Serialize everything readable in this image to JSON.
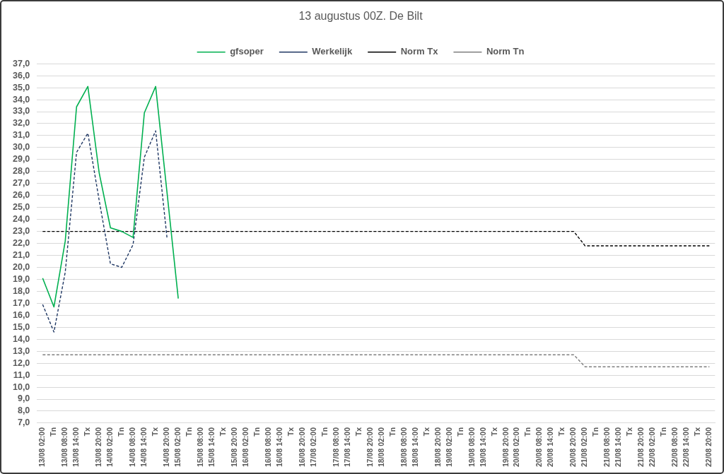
{
  "chart_data": {
    "type": "line",
    "title": "13 augustus 00Z. De Bilt",
    "categories": [
      "13/08 02:00",
      "Tn",
      "13/08 08:00",
      "13/08 14:00",
      "Tx",
      "13/08 20:00",
      "14/08 02:00",
      "Tn",
      "14/08 08:00",
      "14/08 14:00",
      "Tx",
      "14/08 20:00",
      "15/08 02:00",
      "Tn",
      "15/08 08:00",
      "15/08 14:00",
      "Tx",
      "15/08 20:00",
      "16/08 02:00",
      "Tn",
      "16/08 08:00",
      "16/08 14:00",
      "Tx",
      "16/08 20:00",
      "17/08 02:00",
      "Tn",
      "17/08 08:00",
      "17/08 14:00",
      "Tx",
      "17/08 20:00",
      "18/08 02:00",
      "Tn",
      "18/08 08:00",
      "18/08 14:00",
      "Tx",
      "18/08 20:00",
      "19/08 02:00",
      "Tn",
      "19/08 08:00",
      "19/08 14:00",
      "Tx",
      "19/08 20:00",
      "20/08 02:00",
      "Tn",
      "20/08 08:00",
      "20/08 14:00",
      "Tx",
      "20/08 20:00",
      "21/08 02:00",
      "Tn",
      "21/08 08:00",
      "21/08 14:00",
      "Tx",
      "21/08 20:00",
      "22/08 02:00",
      "Tn",
      "22/08 08:00",
      "22/08 14:00",
      "Tx",
      "22/08 20:00"
    ],
    "series": [
      {
        "name": "gfsoper",
        "color": "#00b050",
        "line_style": "solid",
        "values": [
          19.1,
          16.7,
          22.2,
          33.4,
          35.1,
          27.9,
          23.3,
          23.0,
          22.5,
          32.9,
          35.1,
          26.3,
          17.4,
          null,
          null,
          null,
          null,
          null,
          null,
          null,
          null,
          null,
          null,
          null,
          null,
          null,
          null,
          null,
          null,
          null,
          null,
          null,
          null,
          null,
          null,
          null,
          null,
          null,
          null,
          null,
          null,
          null,
          null,
          null,
          null,
          null,
          null,
          null,
          null,
          null,
          null,
          null,
          null,
          null,
          null,
          null,
          null,
          null,
          null,
          null
        ]
      },
      {
        "name": "Werkelijk",
        "color": "#203864",
        "line_style": "dashed",
        "values": [
          16.9,
          14.6,
          19.6,
          29.6,
          31.2,
          25.6,
          20.3,
          20.0,
          21.9,
          29.2,
          31.4,
          22.5,
          null,
          null,
          null,
          null,
          null,
          null,
          null,
          null,
          null,
          null,
          null,
          null,
          null,
          null,
          null,
          null,
          null,
          null,
          null,
          null,
          null,
          null,
          null,
          null,
          null,
          null,
          null,
          null,
          null,
          null,
          null,
          null,
          null,
          null,
          null,
          null,
          null,
          null,
          null,
          null,
          null,
          null,
          null,
          null,
          null,
          null,
          null,
          null
        ]
      },
      {
        "name": "Norm Tx",
        "color": "#000000",
        "line_style": "dashed",
        "values": [
          23.0,
          23.0,
          23.0,
          23.0,
          23.0,
          23.0,
          23.0,
          23.0,
          23.0,
          23.0,
          23.0,
          23.0,
          23.0,
          23.0,
          23.0,
          23.0,
          23.0,
          23.0,
          23.0,
          23.0,
          23.0,
          23.0,
          23.0,
          23.0,
          23.0,
          23.0,
          23.0,
          23.0,
          23.0,
          23.0,
          23.0,
          23.0,
          23.0,
          23.0,
          23.0,
          23.0,
          23.0,
          23.0,
          23.0,
          23.0,
          23.0,
          23.0,
          23.0,
          23.0,
          23.0,
          23.0,
          23.0,
          23.0,
          21.8,
          21.8,
          21.8,
          21.8,
          21.8,
          21.8,
          21.8,
          21.8,
          21.8,
          21.8,
          21.8,
          21.8
        ]
      },
      {
        "name": "Norm Tn",
        "color": "#7f7f7f",
        "line_style": "dashed",
        "values": [
          12.7,
          12.7,
          12.7,
          12.7,
          12.7,
          12.7,
          12.7,
          12.7,
          12.7,
          12.7,
          12.7,
          12.7,
          12.7,
          12.7,
          12.7,
          12.7,
          12.7,
          12.7,
          12.7,
          12.7,
          12.7,
          12.7,
          12.7,
          12.7,
          12.7,
          12.7,
          12.7,
          12.7,
          12.7,
          12.7,
          12.7,
          12.7,
          12.7,
          12.7,
          12.7,
          12.7,
          12.7,
          12.7,
          12.7,
          12.7,
          12.7,
          12.7,
          12.7,
          12.7,
          12.7,
          12.7,
          12.7,
          12.7,
          11.7,
          11.7,
          11.7,
          11.7,
          11.7,
          11.7,
          11.7,
          11.7,
          11.7,
          11.7,
          11.7,
          11.7
        ]
      }
    ],
    "ylim": [
      7,
      37
    ],
    "yticks": [
      {
        "value": 7,
        "label": "7,0"
      },
      {
        "value": 8,
        "label": "8,0"
      },
      {
        "value": 9,
        "label": "9,0"
      },
      {
        "value": 10,
        "label": "10,0"
      },
      {
        "value": 11,
        "label": "11,0"
      },
      {
        "value": 12,
        "label": "12,0"
      },
      {
        "value": 13,
        "label": "13,0"
      },
      {
        "value": 14,
        "label": "14,0"
      },
      {
        "value": 15,
        "label": "15,0"
      },
      {
        "value": 16,
        "label": "16,0"
      },
      {
        "value": 17,
        "label": "17,0"
      },
      {
        "value": 18,
        "label": "18,0"
      },
      {
        "value": 19,
        "label": "19,0"
      },
      {
        "value": 20,
        "label": "20,0"
      },
      {
        "value": 21,
        "label": "21,0"
      },
      {
        "value": 22,
        "label": "22,0"
      },
      {
        "value": 23,
        "label": "23,0"
      },
      {
        "value": 24,
        "label": "24,0"
      },
      {
        "value": 25,
        "label": "25,0"
      },
      {
        "value": 26,
        "label": "26,0"
      },
      {
        "value": 27,
        "label": "27,0"
      },
      {
        "value": 28,
        "label": "28,0"
      },
      {
        "value": 29,
        "label": "29,0"
      },
      {
        "value": 30,
        "label": "30,0"
      },
      {
        "value": 31,
        "label": "31,0"
      },
      {
        "value": 32,
        "label": "32,0"
      },
      {
        "value": 33,
        "label": "33,0"
      },
      {
        "value": 34,
        "label": "34,0"
      },
      {
        "value": 35,
        "label": "35,0"
      },
      {
        "value": 36,
        "label": "36,0"
      },
      {
        "value": 37,
        "label": "37,0"
      }
    ],
    "grid": "y",
    "legend": "top",
    "marker": "none"
  }
}
